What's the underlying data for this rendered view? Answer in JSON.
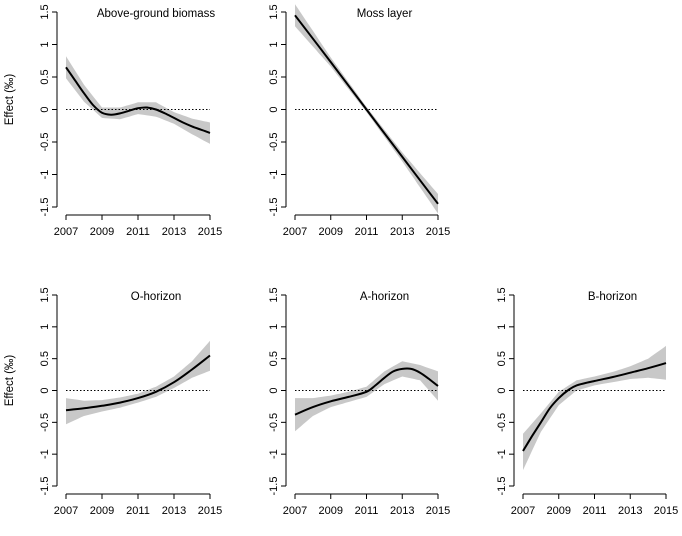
{
  "chart_data": [
    {
      "type": "line",
      "title": "Above-ground biomass",
      "ylabel": "Effect (‰)",
      "xlabel": "",
      "x_ticks": [
        "2007",
        "2009",
        "2011",
        "2013",
        "2015"
      ],
      "y_ticks": [
        "1.5",
        "1",
        "0.5",
        "0",
        "-0.5",
        "-1",
        "-1.5"
      ],
      "xlim": [
        2007,
        2015
      ],
      "ylim": [
        -1.5,
        1.5
      ],
      "reference_line": 0,
      "series": [
        {
          "name": "fit",
          "x": [
            2007,
            2007.5,
            2008,
            2008.5,
            2009,
            2009.5,
            2010,
            2010.5,
            2011,
            2011.5,
            2012,
            2012.5,
            2013,
            2013.5,
            2014,
            2014.5,
            2015
          ],
          "values": [
            0.65,
            0.45,
            0.25,
            0.07,
            -0.05,
            -0.08,
            -0.06,
            -0.02,
            0.02,
            0.03,
            0.0,
            -0.06,
            -0.13,
            -0.2,
            -0.26,
            -0.31,
            -0.36
          ]
        },
        {
          "name": "ci_upper",
          "x": [
            2007,
            2008,
            2009,
            2010,
            2011,
            2012,
            2013,
            2014,
            2015
          ],
          "values": [
            0.82,
            0.38,
            0.03,
            0.03,
            0.11,
            0.11,
            -0.04,
            -0.14,
            -0.2
          ]
        },
        {
          "name": "ci_lower",
          "x": [
            2007,
            2008,
            2009,
            2010,
            2011,
            2012,
            2013,
            2014,
            2015
          ],
          "values": [
            0.48,
            0.12,
            -0.13,
            -0.15,
            -0.07,
            -0.11,
            -0.22,
            -0.38,
            -0.53
          ]
        }
      ]
    },
    {
      "type": "line",
      "title": "Moss layer",
      "ylabel": "",
      "xlabel": "",
      "x_ticks": [
        "2007",
        "2009",
        "2011",
        "2013",
        "2015"
      ],
      "y_ticks": [
        "1.5",
        "1",
        "0.5",
        "0",
        "-0.5",
        "-1",
        "-1.5"
      ],
      "xlim": [
        2007,
        2015
      ],
      "ylim": [
        -1.5,
        1.5
      ],
      "reference_line": 0,
      "series": [
        {
          "name": "fit",
          "x": [
            2007,
            2009,
            2011,
            2013,
            2015
          ],
          "values": [
            1.45,
            0.73,
            0.0,
            -0.73,
            -1.45
          ]
        },
        {
          "name": "ci_upper",
          "x": [
            2007,
            2009,
            2011,
            2013,
            2015
          ],
          "values": [
            1.62,
            0.8,
            0.04,
            -0.66,
            -1.3
          ]
        },
        {
          "name": "ci_lower",
          "x": [
            2007,
            2009,
            2011,
            2013,
            2015
          ],
          "values": [
            1.28,
            0.66,
            -0.04,
            -0.8,
            -1.6
          ]
        }
      ]
    },
    {
      "type": "line",
      "title": "O-horizon",
      "ylabel": "Effect (‰)",
      "xlabel": "",
      "x_ticks": [
        "2007",
        "2009",
        "2011",
        "2013",
        "2015"
      ],
      "y_ticks": [
        "1.5",
        "1",
        "0.5",
        "0",
        "-0.5",
        "-1",
        "-1.5"
      ],
      "xlim": [
        2007,
        2015
      ],
      "ylim": [
        -1.5,
        1.5
      ],
      "reference_line": 0,
      "series": [
        {
          "name": "fit",
          "x": [
            2007,
            2008,
            2009,
            2010,
            2011,
            2012,
            2013,
            2014,
            2015
          ],
          "values": [
            -0.31,
            -0.28,
            -0.24,
            -0.19,
            -0.12,
            -0.02,
            0.13,
            0.33,
            0.55
          ]
        },
        {
          "name": "ci_upper",
          "x": [
            2007,
            2008,
            2009,
            2010,
            2011,
            2012,
            2013,
            2014,
            2015
          ],
          "values": [
            -0.12,
            -0.16,
            -0.15,
            -0.11,
            -0.05,
            0.06,
            0.22,
            0.46,
            0.78
          ]
        },
        {
          "name": "ci_lower",
          "x": [
            2007,
            2008,
            2009,
            2010,
            2011,
            2012,
            2013,
            2014,
            2015
          ],
          "values": [
            -0.53,
            -0.4,
            -0.33,
            -0.27,
            -0.19,
            -0.1,
            0.04,
            0.2,
            0.31
          ]
        }
      ]
    },
    {
      "type": "line",
      "title": "A-horizon",
      "ylabel": "",
      "xlabel": "",
      "x_ticks": [
        "2007",
        "2009",
        "2011",
        "2013",
        "2015"
      ],
      "y_ticks": [
        "1.5",
        "1",
        "0.5",
        "0",
        "-0.5",
        "-1",
        "-1.5"
      ],
      "xlim": [
        2007,
        2015
      ],
      "ylim": [
        -1.5,
        1.5
      ],
      "reference_line": 0,
      "series": [
        {
          "name": "fit",
          "x": [
            2007,
            2008,
            2009,
            2010,
            2011,
            2011.5,
            2012,
            2012.5,
            2013,
            2013.5,
            2014,
            2014.5,
            2015
          ],
          "values": [
            -0.38,
            -0.26,
            -0.17,
            -0.1,
            -0.02,
            0.08,
            0.2,
            0.3,
            0.34,
            0.34,
            0.28,
            0.18,
            0.07
          ]
        },
        {
          "name": "ci_upper",
          "x": [
            2007,
            2008,
            2009,
            2010,
            2011,
            2012,
            2013,
            2014,
            2015
          ],
          "values": [
            -0.12,
            -0.12,
            -0.08,
            -0.02,
            0.06,
            0.3,
            0.46,
            0.4,
            0.3
          ]
        },
        {
          "name": "ci_lower",
          "x": [
            2007,
            2008,
            2009,
            2010,
            2011,
            2012,
            2013,
            2014,
            2015
          ],
          "values": [
            -0.64,
            -0.4,
            -0.26,
            -0.18,
            -0.1,
            0.1,
            0.22,
            0.16,
            -0.16
          ]
        }
      ]
    },
    {
      "type": "line",
      "title": "B-horizon",
      "ylabel": "",
      "xlabel": "",
      "x_ticks": [
        "2007",
        "2009",
        "2011",
        "2013",
        "2015"
      ],
      "y_ticks": [
        "1.5",
        "1",
        "0.5",
        "0",
        "-0.5",
        "-1",
        "-1.5"
      ],
      "xlim": [
        2007,
        2015
      ],
      "ylim": [
        -1.5,
        1.5
      ],
      "reference_line": 0,
      "series": [
        {
          "name": "fit",
          "x": [
            2007,
            2007.5,
            2008,
            2008.5,
            2009,
            2009.5,
            2010,
            2011,
            2012,
            2013,
            2014,
            2015
          ],
          "values": [
            -0.95,
            -0.72,
            -0.5,
            -0.28,
            -0.12,
            0.0,
            0.08,
            0.15,
            0.21,
            0.28,
            0.35,
            0.43
          ]
        },
        {
          "name": "ci_upper",
          "x": [
            2007,
            2008,
            2009,
            2010,
            2011,
            2012,
            2013,
            2014,
            2015
          ],
          "values": [
            -0.68,
            -0.36,
            -0.02,
            0.16,
            0.22,
            0.29,
            0.38,
            0.5,
            0.7
          ]
        },
        {
          "name": "ci_lower",
          "x": [
            2007,
            2008,
            2009,
            2010,
            2011,
            2012,
            2013,
            2014,
            2015
          ],
          "values": [
            -1.25,
            -0.65,
            -0.23,
            0.0,
            0.08,
            0.13,
            0.18,
            0.2,
            0.17
          ]
        }
      ]
    }
  ]
}
